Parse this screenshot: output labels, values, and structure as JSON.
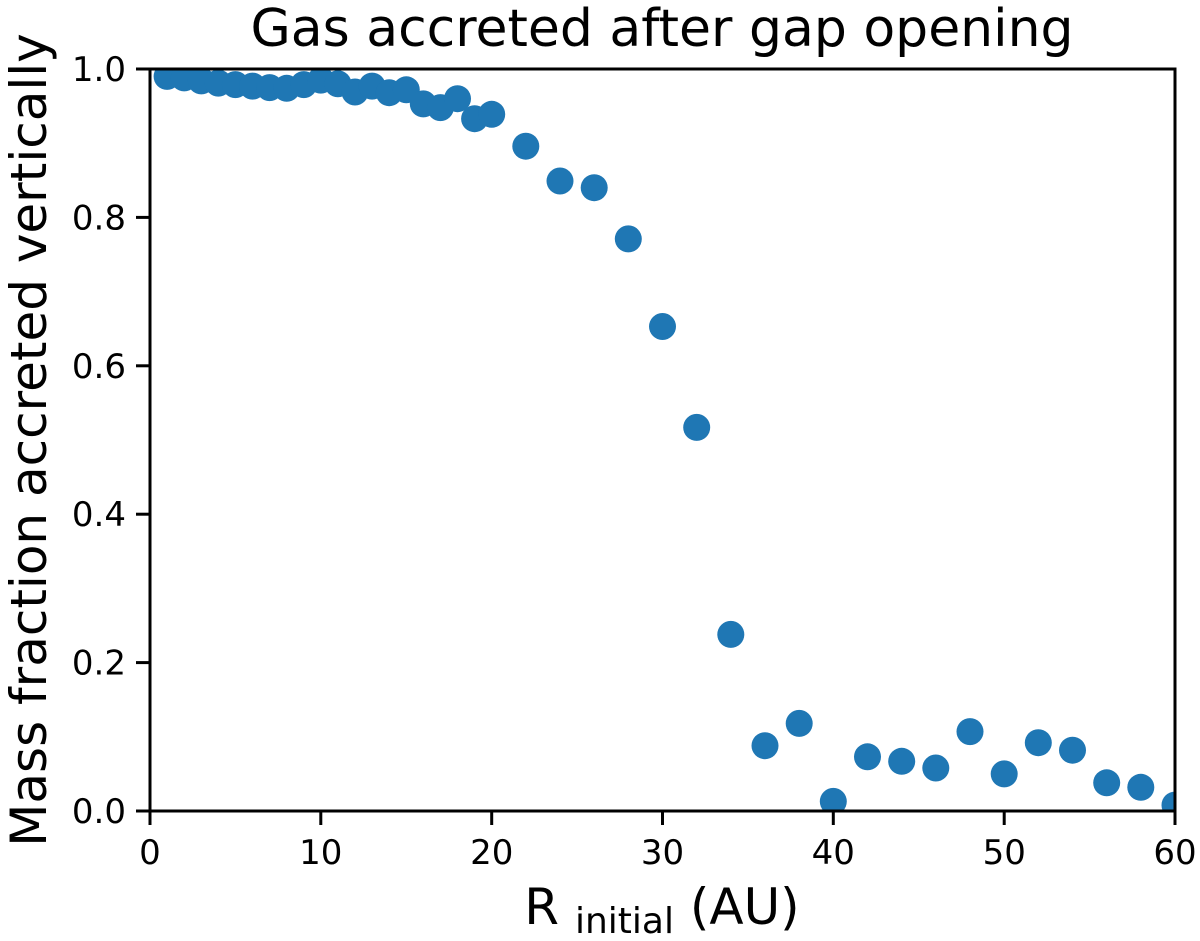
{
  "chart_data": {
    "type": "scatter",
    "title": "Gas accreted after gap opening",
    "ylabel": "Mass fraction accreted vertically",
    "xlabel_parts": {
      "main": "R",
      "sub": "initial",
      "rest": " (AU)"
    },
    "xlim": [
      0,
      60
    ],
    "ylim": [
      0.0,
      1.0
    ],
    "x_ticks": [
      0,
      10,
      20,
      30,
      40,
      50,
      60
    ],
    "y_ticks": [
      "0.0",
      "0.2",
      "0.4",
      "0.6",
      "0.8",
      "1.0"
    ],
    "grid": false,
    "legend_position": "none",
    "marker_color": "#1f77b4",
    "marker_radius": 13.5,
    "axis_color": "#000000",
    "background_color": "#ffffff",
    "x": [
      1,
      2,
      3,
      4,
      5,
      6,
      7,
      8,
      9,
      10,
      11,
      12,
      13,
      14,
      15,
      16,
      17,
      18,
      19,
      20,
      22,
      24,
      26,
      28,
      30,
      32,
      34,
      36,
      38,
      40,
      42,
      44,
      46,
      48,
      50,
      52,
      54,
      56,
      58,
      60
    ],
    "y": [
      0.99,
      0.988,
      0.984,
      0.981,
      0.979,
      0.977,
      0.975,
      0.974,
      0.979,
      0.985,
      0.98,
      0.969,
      0.977,
      0.968,
      0.972,
      0.953,
      0.948,
      0.96,
      0.933,
      0.939,
      0.896,
      0.849,
      0.84,
      0.771,
      0.653,
      0.517,
      0.238,
      0.088,
      0.118,
      0.013,
      0.073,
      0.067,
      0.058,
      0.107,
      0.05,
      0.092,
      0.082,
      0.038,
      0.032,
      0.008
    ]
  }
}
